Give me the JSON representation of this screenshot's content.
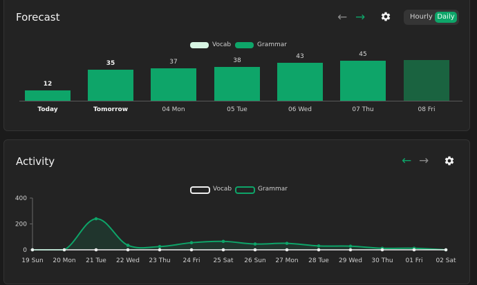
{
  "forecast": {
    "title": "Forecast",
    "toggle": {
      "hourly_label": "Hourly",
      "daily_label": "Daily",
      "selected": "Daily"
    },
    "legend": [
      {
        "name": "Vocab",
        "color": "#d7f5e3"
      },
      {
        "name": "Grammar",
        "color": "#0ea569"
      }
    ],
    "chart_data": {
      "type": "bar",
      "categories": [
        "Today",
        "Tomorrow",
        "04 Mon",
        "05 Tue",
        "06 Wed",
        "07 Thu",
        "08 Fri"
      ],
      "values": [
        12,
        35,
        37,
        38,
        43,
        45,
        null
      ],
      "value_labels": [
        "12",
        "35",
        "37",
        "38",
        "43",
        "45",
        ""
      ],
      "bold_categories": [
        "Today",
        "Tomorrow"
      ],
      "series": [
        {
          "name": "Grammar",
          "values": [
            12,
            35,
            37,
            38,
            43,
            45,
            null
          ]
        }
      ],
      "colors": {
        "bar": "#0ea569",
        "bar_dim": "#1a6340"
      },
      "grid": false,
      "legend_position": "top-center"
    }
  },
  "activity": {
    "title": "Activity",
    "legend": [
      {
        "name": "Vocab",
        "color": "#f0f0f0"
      },
      {
        "name": "Grammar",
        "color": "#0ea569"
      }
    ],
    "chart_data": {
      "type": "line",
      "x": [
        "19 Sun",
        "20 Mon",
        "21 Tue",
        "22 Wed",
        "23 Thu",
        "24 Fri",
        "25 Sat",
        "26 Sun",
        "27 Mon",
        "28 Tue",
        "29 Wed",
        "30 Thu",
        "01 Fri",
        "02 Sat"
      ],
      "yticks": [
        "400",
        "200",
        "0"
      ],
      "ylim": [
        0,
        400
      ],
      "series": [
        {
          "name": "Vocab",
          "values": [
            0,
            0,
            0,
            0,
            0,
            0,
            0,
            0,
            0,
            0,
            0,
            0,
            0,
            0
          ],
          "color": "#f0f0f0"
        },
        {
          "name": "Grammar",
          "values": [
            0,
            0,
            240,
            35,
            25,
            55,
            65,
            45,
            50,
            30,
            28,
            12,
            12,
            0
          ],
          "color": "#0ea569"
        }
      ],
      "grid": false,
      "legend_position": "top-center"
    }
  }
}
